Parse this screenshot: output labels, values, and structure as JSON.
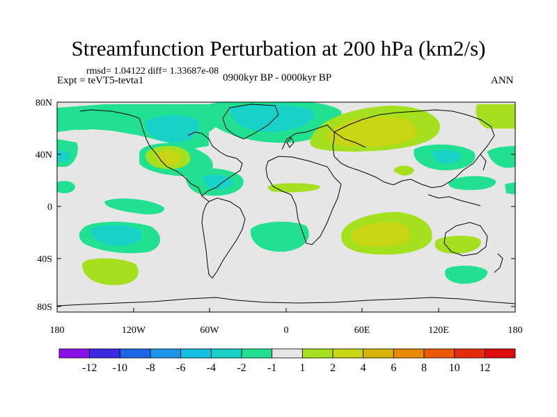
{
  "title": "Streamfunction Perturbation at 200 hPa (km2/s)",
  "stats": "rmsd= 1.04122 diff= 1.33687e-08",
  "experiment": "Expt = teVT5-tevta1",
  "period": "0900kyr BP - 0000kyr BP",
  "season": "ANN",
  "lat_ticks": [
    "80N",
    "40N",
    "0",
    "40S",
    "80S"
  ],
  "lon_ticks": [
    "180",
    "120W",
    "60W",
    "0",
    "60E",
    "120E",
    "180"
  ],
  "colorbar": {
    "labels": [
      "-12",
      "-10",
      "-8",
      "-6",
      "-4",
      "-2",
      "-1",
      "1",
      "2",
      "4",
      "6",
      "8",
      "10",
      "12"
    ],
    "colors": [
      "#8c10e8",
      "#3c28e0",
      "#1e64e6",
      "#1e96e8",
      "#14c0e0",
      "#18d2c8",
      "#22e092",
      "#e6e6e6",
      "#a4e01e",
      "#c8d414",
      "#d8b40a",
      "#e88a06",
      "#ea5a06",
      "#e42a0a",
      "#dc0a0a"
    ]
  }
}
